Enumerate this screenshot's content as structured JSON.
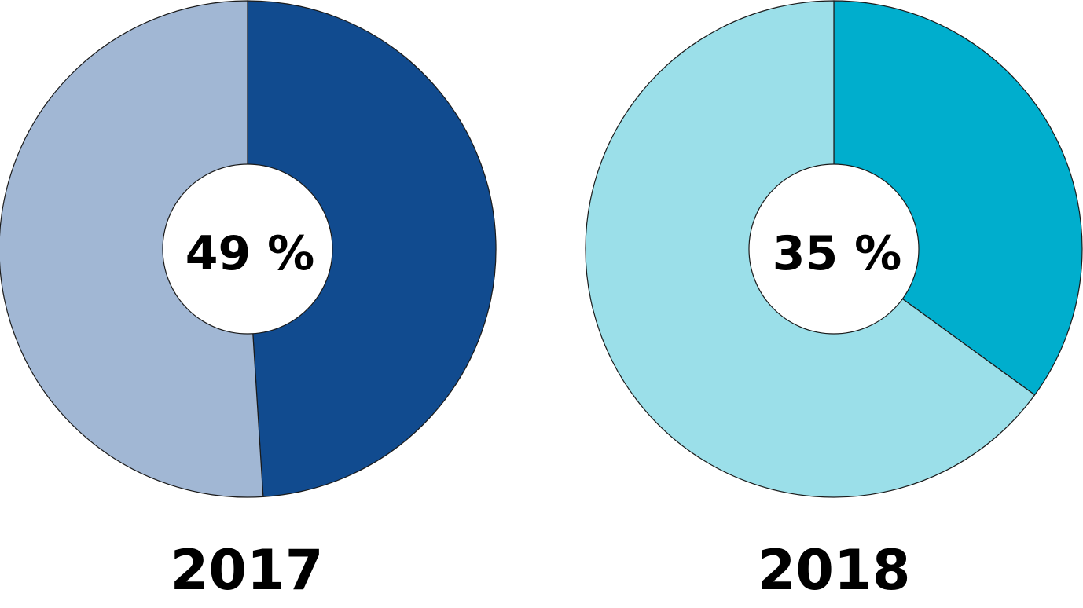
{
  "chart_data": [
    {
      "type": "pie",
      "variant": "donut",
      "title": "",
      "category": "2017",
      "center_label": "49 %",
      "slices": [
        {
          "value": 49,
          "color": "#114b8f"
        },
        {
          "value": 51,
          "color": "#a1b7d4"
        }
      ]
    },
    {
      "type": "pie",
      "variant": "donut",
      "title": "",
      "category": "2018",
      "center_label": "35 %",
      "slices": [
        {
          "value": 35,
          "color": "#00aecd"
        },
        {
          "value": 65,
          "color": "#9bdfe9"
        }
      ]
    }
  ]
}
